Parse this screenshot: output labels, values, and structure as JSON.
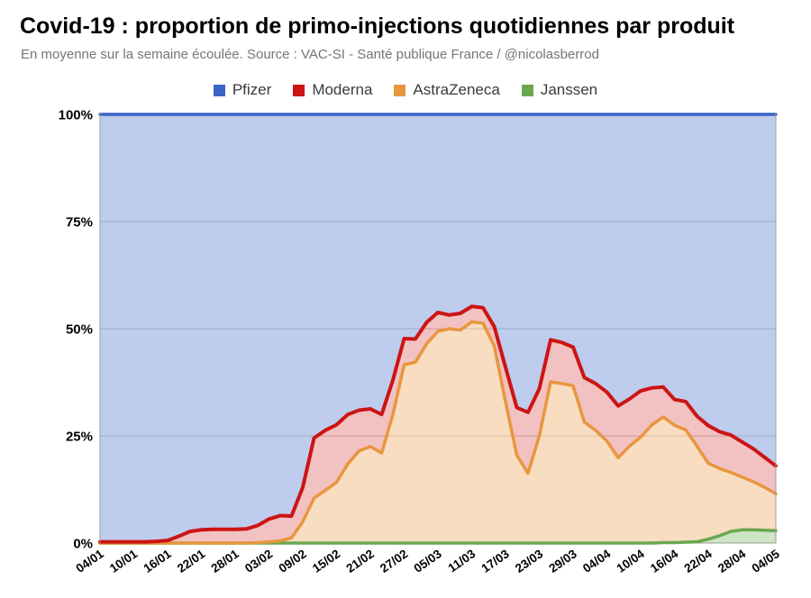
{
  "chart_data": {
    "type": "area",
    "stacked": true,
    "percent_stacked": true,
    "title": "Covid-19 : proportion de primo-injections quotidiennes par produit",
    "subtitle": "En moyenne sur la semaine écoulée. Source : VAC-SI - Santé publique France / @nicolasberrod",
    "legend_position": "top",
    "grid": true,
    "grid_color": "#cccccc",
    "axis_border_color": "#9e9e9e",
    "ylim": [
      0,
      100
    ],
    "y_ticks": [
      "0%",
      "25%",
      "50%",
      "75%",
      "100%"
    ],
    "x_ticks": [
      "04/01",
      "10/01",
      "16/01",
      "22/01",
      "28/01",
      "03/02",
      "09/02",
      "15/02",
      "21/02",
      "27/02",
      "05/03",
      "11/03",
      "17/03",
      "23/03",
      "29/03",
      "04/04",
      "10/04",
      "16/04",
      "22/04",
      "28/04",
      "04/05"
    ],
    "legend": [
      {
        "label": "Pfizer",
        "color": "#3A64C8"
      },
      {
        "label": "Moderna",
        "color": "#CC1414"
      },
      {
        "label": "AstraZeneca",
        "color": "#E8963F"
      },
      {
        "label": "Janssen",
        "color": "#6AA84F"
      }
    ],
    "x": [
      "04/01",
      "06/01",
      "08/01",
      "10/01",
      "12/01",
      "14/01",
      "16/01",
      "18/01",
      "20/01",
      "22/01",
      "24/01",
      "26/01",
      "28/01",
      "30/01",
      "01/02",
      "03/02",
      "05/02",
      "07/02",
      "09/02",
      "11/02",
      "13/02",
      "15/02",
      "17/02",
      "19/02",
      "21/02",
      "23/02",
      "25/02",
      "27/02",
      "01/03",
      "03/03",
      "05/03",
      "07/03",
      "09/03",
      "11/03",
      "13/03",
      "15/03",
      "17/03",
      "19/03",
      "21/03",
      "23/03",
      "25/03",
      "27/03",
      "29/03",
      "31/03",
      "02/04",
      "04/04",
      "06/04",
      "08/04",
      "10/04",
      "12/04",
      "14/04",
      "16/04",
      "18/04",
      "20/04",
      "22/04",
      "24/04",
      "26/04",
      "28/04",
      "30/04",
      "02/05",
      "04/05"
    ],
    "series": [
      {
        "id": "janssen",
        "name": "Janssen",
        "color": "#6AA84F",
        "fill": "rgba(106,168,79,0.32)",
        "width": 3.5,
        "values": [
          0,
          0,
          0,
          0,
          0,
          0,
          0,
          0,
          0,
          0,
          0,
          0,
          0,
          0,
          0,
          0,
          0,
          0,
          0,
          0,
          0,
          0,
          0,
          0,
          0,
          0,
          0,
          0,
          0,
          0,
          0,
          0,
          0,
          0,
          0,
          0,
          0,
          0,
          0,
          0,
          0,
          0,
          0,
          0,
          0,
          0,
          0,
          0,
          0,
          0,
          0.1,
          0.1,
          0.2,
          0.3,
          0.9,
          1.7,
          2.7,
          3.1,
          3.1,
          3.0,
          2.9
        ]
      },
      {
        "id": "astrazeneca",
        "name": "AstraZeneca",
        "color": "#E8963F",
        "fill": "rgba(232,150,63,0.32)",
        "width": 3.5,
        "values": [
          0,
          0,
          0,
          0,
          0,
          0,
          0,
          0,
          0,
          0,
          0,
          0,
          0,
          0,
          0.1,
          0.3,
          0.5,
          1.2,
          5.0,
          10.5,
          12.3,
          14.2,
          18.5,
          21.5,
          22.5,
          21.0,
          30.0,
          41.6,
          42.2,
          46.5,
          49.4,
          50.0,
          49.7,
          51.6,
          51.3,
          46.0,
          33.0,
          20.5,
          16.3,
          25.0,
          37.6,
          37.2,
          36.7,
          28.2,
          26.3,
          23.8,
          19.9,
          22.6,
          24.7,
          27.6,
          29.3,
          27.4,
          26.2,
          22.3,
          17.7,
          15.7,
          13.8,
          12.3,
          11.2,
          10.0,
          8.6
        ]
      },
      {
        "id": "moderna",
        "name": "Moderna",
        "color": "#CC1414",
        "fill": "rgba(204,20,20,0.26)",
        "width": 4,
        "values": [
          0.3,
          0.3,
          0.3,
          0.3,
          0.3,
          0.4,
          0.6,
          1.6,
          2.7,
          3.1,
          3.2,
          3.2,
          3.2,
          3.3,
          4.0,
          5.3,
          5.9,
          5.1,
          8.0,
          14.0,
          14.0,
          13.4,
          11.5,
          9.5,
          8.8,
          9.0,
          8.0,
          6.1,
          5.4,
          5.0,
          4.4,
          3.2,
          3.9,
          3.6,
          3.6,
          4.5,
          8.0,
          11.1,
          14.2,
          11.0,
          9.8,
          9.6,
          9.0,
          10.4,
          10.9,
          11.4,
          12.1,
          11.0,
          10.8,
          8.6,
          7.0,
          6.0,
          6.6,
          7.0,
          8.8,
          8.6,
          8.7,
          8.2,
          7.7,
          7.0,
          6.5
        ]
      },
      {
        "id": "pfizer",
        "name": "Pfizer",
        "color": "#3A64C8",
        "fill": "rgba(58,100,200,0.33)",
        "width": 3.5,
        "values": [
          99.7,
          99.7,
          99.7,
          99.7,
          99.7,
          99.6,
          99.4,
          98.4,
          97.3,
          96.9,
          96.8,
          96.8,
          96.8,
          96.7,
          95.9,
          94.4,
          93.6,
          93.7,
          87.0,
          75.5,
          73.7,
          72.4,
          70.0,
          69.0,
          68.7,
          70.0,
          62.0,
          52.3,
          52.4,
          48.5,
          46.2,
          46.8,
          46.4,
          44.8,
          45.1,
          49.5,
          59.0,
          68.4,
          69.5,
          64.0,
          52.6,
          53.2,
          54.3,
          61.4,
          62.8,
          64.8,
          68.0,
          66.4,
          64.5,
          63.8,
          63.6,
          66.5,
          67.0,
          70.4,
          72.6,
          74.0,
          74.8,
          76.4,
          78.0,
          80.0,
          82.0
        ]
      }
    ]
  }
}
